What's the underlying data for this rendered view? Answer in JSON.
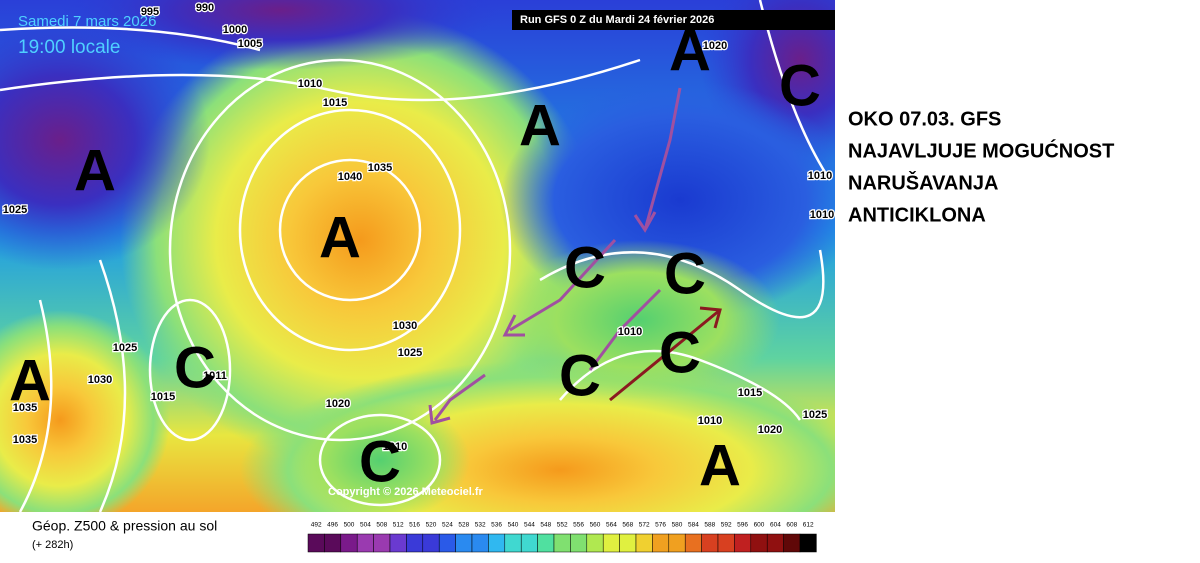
{
  "map": {
    "date_label": "Samedi 7 mars 2026",
    "time_label": "19:00 locale",
    "run_label": "Run GFS 0 Z du Mardi 24 février 2026",
    "copyright": "Copyright © 2026 Meteociel.fr",
    "pressure_labels": [
      "995",
      "990",
      "1000",
      "1005",
      "1010",
      "1015",
      "1035",
      "1040",
      "1025",
      "1010",
      "1010",
      "1020",
      "1030",
      "1025",
      "1025",
      "1030",
      "1015",
      "1011",
      "1020",
      "1010",
      "1035",
      "1035",
      "1010",
      "1015",
      "1010",
      "1020",
      "1025"
    ],
    "pressure_centers": [
      "A",
      "A",
      "A",
      "A",
      "C",
      "A",
      "C",
      "C",
      "C",
      "C",
      "C",
      "C",
      "A"
    ]
  },
  "annotation": {
    "lines": [
      "OKO 07.03. GFS",
      "NAJAVLJUJE MOGUĆNOST",
      "NARUŠAVANJA",
      "ANTICIKLONA"
    ]
  },
  "footer": {
    "title": "Géop. Z500 & pression au sol",
    "lead_time": "(+ 282h)",
    "scale": [
      492,
      496,
      500,
      504,
      508,
      512,
      516,
      520,
      524,
      528,
      532,
      536,
      540,
      544,
      548,
      552,
      556,
      560,
      564,
      568,
      572,
      576,
      580,
      584,
      588,
      592,
      596,
      600,
      604,
      608,
      612
    ]
  }
}
